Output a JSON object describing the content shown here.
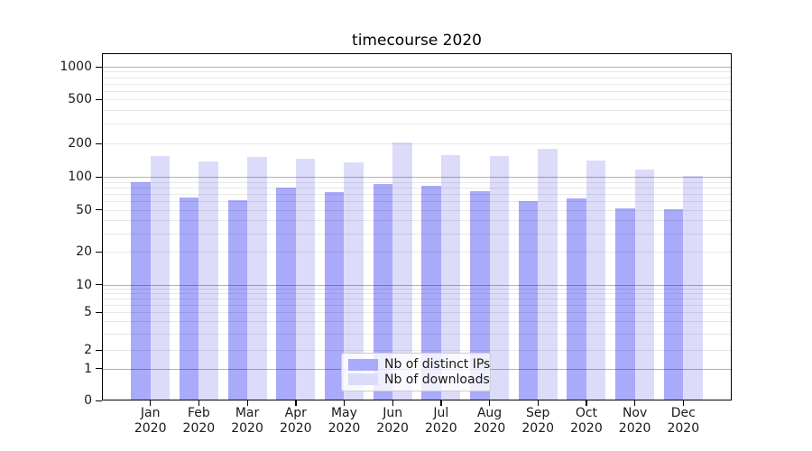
{
  "chart_data": {
    "type": "bar",
    "title": "timecourse 2020",
    "y_scale": "symlog",
    "y_ticks": [
      0,
      1,
      2,
      5,
      10,
      20,
      50,
      100,
      200,
      500,
      1000
    ],
    "ylim": [
      0,
      1330
    ],
    "grid": true,
    "legend_position": "lower-center",
    "categories": [
      "Jan",
      "Feb",
      "Mar",
      "Apr",
      "May",
      "Jun",
      "Jul",
      "Aug",
      "Sep",
      "Oct",
      "Nov",
      "Dec"
    ],
    "category_year": "2020",
    "series": [
      {
        "name": "Nb of distinct IPs",
        "color": "#aaaafa",
        "values": [
          90,
          65,
          61,
          80,
          73,
          86,
          83,
          74,
          60,
          64,
          52,
          51
        ]
      },
      {
        "name": "Nb of downloads",
        "color": "#dcdcfa",
        "values": [
          155,
          139,
          152,
          145,
          135,
          205,
          156,
          155,
          179,
          140,
          117,
          102
        ]
      }
    ]
  },
  "colors": {
    "grid_minor": "#e8e8e8",
    "grid_major": "#b1b1b1",
    "axis": "#000000",
    "background": "#ffffff"
  }
}
